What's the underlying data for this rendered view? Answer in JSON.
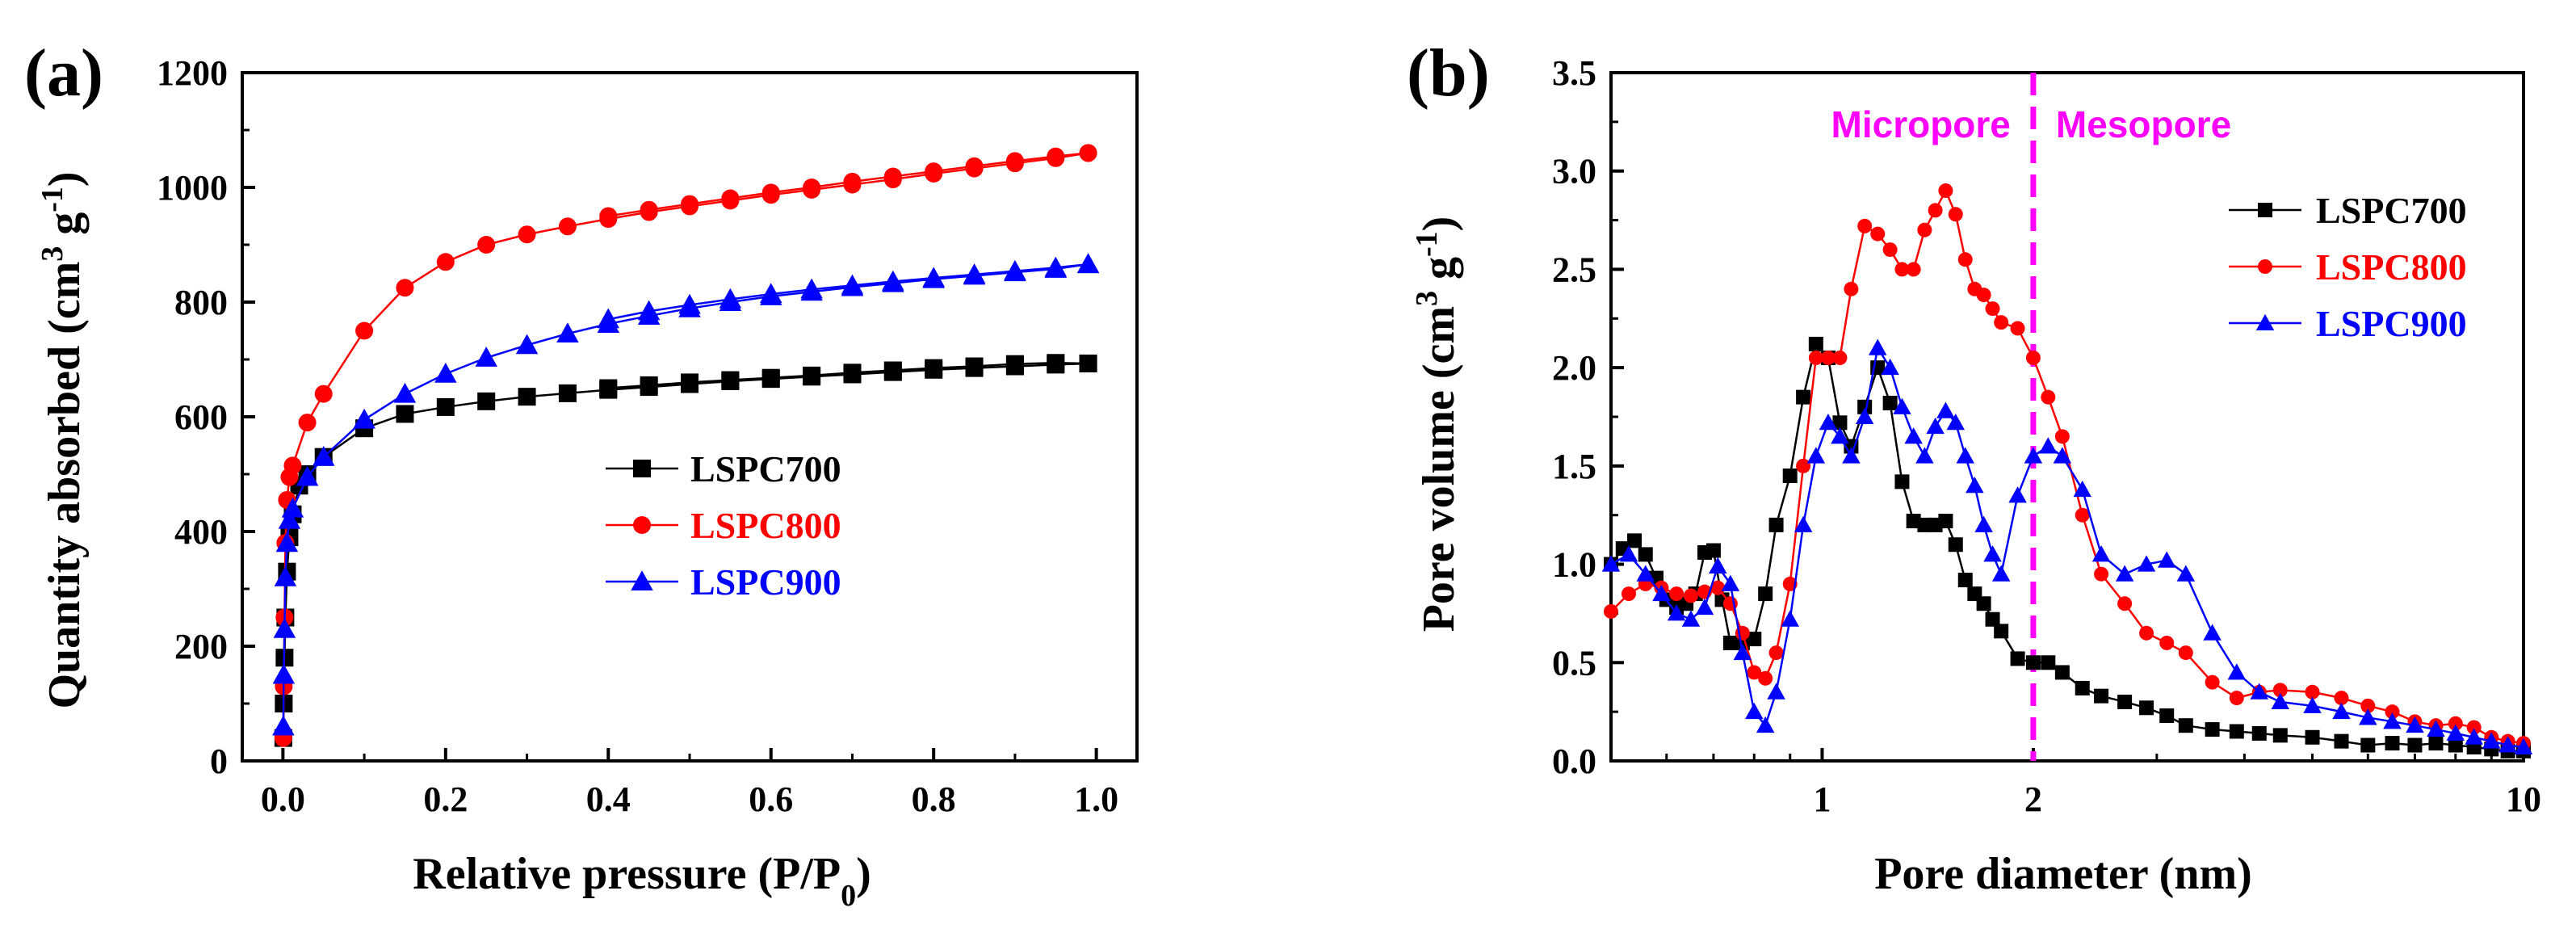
{
  "chart_data": [
    {
      "type": "line",
      "panel_label": "(a)",
      "xlabel": "Relative pressure (P/P",
      "xlabel_sub": "0",
      "xlabel_end": ")",
      "ylabel": "Quantity absorbed (cm",
      "ylabel_sup1": "3",
      "ylabel_mid": " g",
      "ylabel_sup2": "-1",
      "ylabel_end": ")",
      "xlim": [
        -0.05,
        1.05
      ],
      "ylim": [
        0,
        1200
      ],
      "xticks": [
        "0.0",
        "0.2",
        "0.4",
        "0.6",
        "0.8",
        "1.0"
      ],
      "yticks": [
        "0",
        "200",
        "400",
        "600",
        "800",
        "1000",
        "1200"
      ],
      "legend_position": "center-right",
      "series": [
        {
          "name": "LSPC700",
          "color": "#000000",
          "marker": "square",
          "x": [
            0.0005,
            0.001,
            0.002,
            0.003,
            0.005,
            0.008,
            0.012,
            0.02,
            0.03,
            0.05,
            0.1,
            0.15,
            0.2,
            0.25,
            0.3,
            0.35,
            0.4,
            0.45,
            0.5,
            0.55,
            0.6,
            0.65,
            0.7,
            0.75,
            0.8,
            0.85,
            0.9,
            0.95,
            0.99
          ],
          "y": [
            40,
            100,
            180,
            250,
            330,
            390,
            430,
            480,
            500,
            530,
            580,
            605,
            617,
            627,
            635,
            641,
            647,
            652,
            657,
            662,
            666,
            670,
            674,
            678,
            682,
            685,
            688,
            691,
            693
          ],
          "x_des": [
            0.99,
            0.95,
            0.9,
            0.85,
            0.8,
            0.75,
            0.7,
            0.65,
            0.6,
            0.55,
            0.5,
            0.45,
            0.4
          ],
          "y_des": [
            693,
            694,
            692,
            688,
            685,
            681,
            677,
            672,
            668,
            664,
            660,
            655,
            650
          ]
        },
        {
          "name": "LSPC800",
          "color": "#ff0000",
          "marker": "circle",
          "x": [
            0.0005,
            0.001,
            0.002,
            0.003,
            0.005,
            0.008,
            0.012,
            0.03,
            0.05,
            0.1,
            0.15,
            0.2,
            0.25,
            0.3,
            0.35,
            0.4,
            0.45,
            0.5,
            0.55,
            0.6,
            0.65,
            0.7,
            0.75,
            0.8,
            0.85,
            0.9,
            0.95,
            0.99
          ],
          "y": [
            40,
            130,
            250,
            380,
            455,
            495,
            515,
            590,
            640,
            750,
            825,
            870,
            900,
            918,
            932,
            945,
            957,
            967,
            977,
            987,
            996,
            1005,
            1014,
            1024,
            1033,
            1042,
            1051,
            1060
          ],
          "x_des": [
            0.99,
            0.95,
            0.9,
            0.85,
            0.8,
            0.75,
            0.7,
            0.65,
            0.6,
            0.55,
            0.5,
            0.45,
            0.4
          ],
          "y_des": [
            1060,
            1054,
            1046,
            1037,
            1028,
            1019,
            1010,
            1000,
            991,
            981,
            971,
            961,
            950
          ]
        },
        {
          "name": "LSPC900",
          "color": "#0000ff",
          "marker": "triangle",
          "x": [
            0.0005,
            0.001,
            0.002,
            0.003,
            0.005,
            0.008,
            0.012,
            0.03,
            0.05,
            0.1,
            0.15,
            0.2,
            0.25,
            0.3,
            0.35,
            0.4,
            0.45,
            0.5,
            0.55,
            0.6,
            0.65,
            0.7,
            0.75,
            0.8,
            0.85,
            0.9,
            0.95,
            0.99
          ],
          "y": [
            60,
            150,
            230,
            320,
            380,
            420,
            440,
            495,
            530,
            595,
            640,
            675,
            703,
            725,
            745,
            762,
            776,
            789,
            800,
            810,
            818,
            826,
            833,
            840,
            846,
            852,
            858,
            866
          ],
          "x_des": [
            0.99,
            0.95,
            0.9,
            0.85,
            0.8,
            0.75,
            0.7,
            0.65,
            0.6,
            0.55,
            0.5,
            0.45,
            0.4
          ],
          "y_des": [
            866,
            860,
            854,
            848,
            842,
            836,
            829,
            822,
            814,
            805,
            795,
            784,
            770
          ]
        }
      ]
    },
    {
      "type": "line",
      "panel_label": "(b)",
      "xlabel": "Pore diameter (nm)",
      "ylabel": "Pore volume (cm",
      "ylabel_sup1": "3",
      "ylabel_mid": " g",
      "ylabel_sup2": "-1",
      "ylabel_end": ")",
      "xscale": "log",
      "xlim": [
        0.5,
        10
      ],
      "ylim": [
        0,
        3.5
      ],
      "xticks": [
        {
          "value": 1,
          "label": "1"
        },
        {
          "value": 2,
          "label": "2"
        },
        {
          "value": 10,
          "label": "10"
        }
      ],
      "yticks": [
        "0.0",
        "0.5",
        "1.0",
        "1.5",
        "2.0",
        "2.5",
        "3.0",
        "3.5"
      ],
      "divider": {
        "x": 2,
        "color": "#ff00ff",
        "style": "dashed"
      },
      "annotations": [
        {
          "text": "Micropore",
          "color": "#ff00ff"
        },
        {
          "text": "Mesopore",
          "color": "#ff00ff"
        }
      ],
      "legend_position": "top-right",
      "series": [
        {
          "name": "LSPC700",
          "color": "#000000",
          "marker": "square",
          "x": [
            0.5,
            0.52,
            0.54,
            0.56,
            0.58,
            0.6,
            0.62,
            0.64,
            0.66,
            0.68,
            0.7,
            0.72,
            0.74,
            0.77,
            0.8,
            0.83,
            0.86,
            0.9,
            0.94,
            0.98,
            1.02,
            1.06,
            1.1,
            1.15,
            1.2,
            1.25,
            1.3,
            1.35,
            1.4,
            1.45,
            1.5,
            1.55,
            1.6,
            1.65,
            1.7,
            1.75,
            1.8,
            1.9,
            2.0,
            2.1,
            2.2,
            2.35,
            2.5,
            2.7,
            2.9,
            3.1,
            3.3,
            3.6,
            3.9,
            4.2,
            4.5,
            5.0,
            5.5,
            6.0,
            6.5,
            7.0,
            7.5,
            8.0,
            8.5,
            9.0,
            9.5,
            10.0
          ],
          "y": [
            1.0,
            1.08,
            1.12,
            1.05,
            0.93,
            0.82,
            0.78,
            0.8,
            0.85,
            1.06,
            1.07,
            0.82,
            0.6,
            0.6,
            0.62,
            0.85,
            1.2,
            1.45,
            1.85,
            2.12,
            2.05,
            1.72,
            1.6,
            1.8,
            2.0,
            1.82,
            1.42,
            1.22,
            1.2,
            1.2,
            1.22,
            1.1,
            0.92,
            0.85,
            0.8,
            0.72,
            0.66,
            0.52,
            0.5,
            0.5,
            0.45,
            0.37,
            0.33,
            0.3,
            0.27,
            0.23,
            0.18,
            0.16,
            0.15,
            0.14,
            0.13,
            0.12,
            0.1,
            0.08,
            0.09,
            0.08,
            0.09,
            0.08,
            0.07,
            0.06,
            0.05,
            0.05
          ]
        },
        {
          "name": "LSPC800",
          "color": "#ff0000",
          "marker": "circle",
          "x": [
            0.5,
            0.53,
            0.56,
            0.59,
            0.62,
            0.65,
            0.68,
            0.71,
            0.74,
            0.77,
            0.8,
            0.83,
            0.86,
            0.9,
            0.94,
            0.98,
            1.02,
            1.06,
            1.1,
            1.15,
            1.2,
            1.25,
            1.3,
            1.35,
            1.4,
            1.45,
            1.5,
            1.55,
            1.6,
            1.65,
            1.7,
            1.75,
            1.8,
            1.9,
            2.0,
            2.1,
            2.2,
            2.35,
            2.5,
            2.7,
            2.9,
            3.1,
            3.3,
            3.6,
            3.9,
            4.2,
            4.5,
            5.0,
            5.5,
            6.0,
            6.5,
            7.0,
            7.5,
            8.0,
            8.5,
            9.0,
            9.5,
            10.0
          ],
          "y": [
            0.76,
            0.85,
            0.9,
            0.88,
            0.85,
            0.84,
            0.86,
            0.88,
            0.8,
            0.65,
            0.45,
            0.42,
            0.55,
            0.9,
            1.5,
            2.05,
            2.05,
            2.05,
            2.4,
            2.72,
            2.68,
            2.6,
            2.5,
            2.5,
            2.7,
            2.8,
            2.9,
            2.78,
            2.55,
            2.4,
            2.37,
            2.3,
            2.23,
            2.2,
            2.05,
            1.85,
            1.65,
            1.25,
            0.95,
            0.8,
            0.65,
            0.6,
            0.55,
            0.4,
            0.32,
            0.35,
            0.36,
            0.35,
            0.32,
            0.28,
            0.25,
            0.2,
            0.18,
            0.19,
            0.17,
            0.12,
            0.1,
            0.09
          ]
        },
        {
          "name": "LSPC900",
          "color": "#0000ff",
          "marker": "triangle",
          "x": [
            0.5,
            0.53,
            0.56,
            0.59,
            0.62,
            0.65,
            0.68,
            0.71,
            0.74,
            0.77,
            0.8,
            0.83,
            0.86,
            0.9,
            0.94,
            0.98,
            1.02,
            1.06,
            1.1,
            1.15,
            1.2,
            1.25,
            1.3,
            1.35,
            1.4,
            1.45,
            1.5,
            1.55,
            1.6,
            1.65,
            1.7,
            1.75,
            1.8,
            1.9,
            2.0,
            2.1,
            2.2,
            2.35,
            2.5,
            2.7,
            2.9,
            3.1,
            3.3,
            3.6,
            3.9,
            4.2,
            4.5,
            5.0,
            5.5,
            6.0,
            6.5,
            7.0,
            7.5,
            8.0,
            8.5,
            9.0,
            9.5,
            10.0
          ],
          "y": [
            1.0,
            1.05,
            0.95,
            0.85,
            0.75,
            0.72,
            0.78,
            0.99,
            0.9,
            0.55,
            0.25,
            0.18,
            0.35,
            0.72,
            1.2,
            1.55,
            1.72,
            1.65,
            1.55,
            1.75,
            2.1,
            2.0,
            1.8,
            1.65,
            1.55,
            1.7,
            1.78,
            1.72,
            1.55,
            1.4,
            1.2,
            1.05,
            0.95,
            1.35,
            1.55,
            1.6,
            1.55,
            1.38,
            1.05,
            0.95,
            1.0,
            1.02,
            0.95,
            0.65,
            0.45,
            0.35,
            0.3,
            0.28,
            0.25,
            0.22,
            0.2,
            0.18,
            0.16,
            0.14,
            0.12,
            0.1,
            0.08,
            0.07
          ]
        }
      ]
    }
  ]
}
